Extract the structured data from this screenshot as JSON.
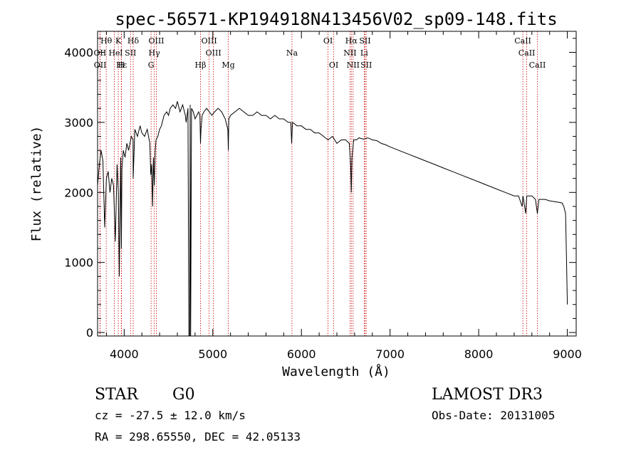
{
  "chart_data": {
    "type": "line",
    "title": "spec-56571-KP194918N413456V02_sp09-148.fits",
    "xlabel": "Wavelength (Å)",
    "ylabel": "Flux (relative)",
    "xlim": [
      3700,
      9100
    ],
    "ylim": [
      -50,
      4300
    ],
    "xticks": [
      4000,
      5000,
      6000,
      7000,
      8000,
      9000
    ],
    "yticks": [
      0,
      1000,
      2000,
      3000,
      4000
    ],
    "series": [
      {
        "name": "flux",
        "x": [
          3700,
          3720,
          3740,
          3760,
          3780,
          3800,
          3820,
          3840,
          3860,
          3880,
          3900,
          3920,
          3935,
          3945,
          3960,
          3968,
          3975,
          3990,
          4010,
          4030,
          4050,
          4080,
          4100,
          4102,
          4120,
          4150,
          4180,
          4200,
          4230,
          4260,
          4290,
          4300,
          4310,
          4320,
          4330,
          4340,
          4350,
          4360,
          4380,
          4400,
          4420,
          4450,
          4480,
          4500,
          4520,
          4550,
          4580,
          4600,
          4630,
          4660,
          4690,
          4700,
          4720,
          4730,
          4740,
          4745,
          4750,
          4760,
          4780,
          4800,
          4820,
          4840,
          4855,
          4861,
          4867,
          4880,
          4900,
          4930,
          4960,
          4990,
          5020,
          5060,
          5100,
          5140,
          5170,
          5175,
          5180,
          5200,
          5250,
          5300,
          5350,
          5400,
          5450,
          5500,
          5550,
          5600,
          5650,
          5700,
          5750,
          5800,
          5850,
          5880,
          5890,
          5896,
          5900,
          5950,
          6000,
          6050,
          6100,
          6150,
          6200,
          6250,
          6300,
          6350,
          6400,
          6450,
          6500,
          6540,
          6555,
          6563,
          6570,
          6590,
          6620,
          6650,
          6700,
          6750,
          6800,
          6850,
          6900,
          6950,
          7000,
          7100,
          7200,
          7300,
          7400,
          7500,
          7600,
          7700,
          7800,
          7900,
          8000,
          8100,
          8200,
          8300,
          8400,
          8450,
          8490,
          8500,
          8530,
          8542,
          8550,
          8600,
          8640,
          8662,
          8680,
          8750,
          8800,
          8850,
          8900,
          8940,
          8960,
          8970,
          8980,
          8990,
          9000
        ],
        "values": [
          2100,
          2400,
          2600,
          2450,
          1500,
          2200,
          2300,
          2000,
          2200,
          2100,
          1300,
          2400,
          2000,
          800,
          2500,
          1200,
          2350,
          2600,
          2500,
          2700,
          2600,
          2800,
          2750,
          2200,
          2900,
          2800,
          2950,
          2850,
          2800,
          2900,
          2700,
          2250,
          2400,
          1800,
          2500,
          2100,
          2600,
          2750,
          2800,
          2900,
          2950,
          3100,
          3150,
          3100,
          3200,
          3250,
          3200,
          3300,
          3150,
          3250,
          3100,
          3000,
          3200,
          -50,
          -50,
          3250,
          -50,
          3200,
          3150,
          3050,
          3100,
          3150,
          3100,
          2700,
          2900,
          3100,
          3150,
          3200,
          3150,
          3100,
          3150,
          3200,
          3150,
          3050,
          2900,
          2600,
          3050,
          3100,
          3150,
          3200,
          3150,
          3100,
          3100,
          3150,
          3100,
          3100,
          3050,
          3100,
          3050,
          3050,
          3000,
          3000,
          2700,
          2900,
          3000,
          2950,
          2950,
          2900,
          2900,
          2850,
          2850,
          2800,
          2750,
          2800,
          2700,
          2750,
          2750,
          2700,
          2400,
          2000,
          2500,
          2750,
          2750,
          2780,
          2760,
          2780,
          2750,
          2740,
          2700,
          2680,
          2650,
          2600,
          2550,
          2500,
          2450,
          2400,
          2350,
          2300,
          2250,
          2200,
          2150,
          2100,
          2050,
          2000,
          1950,
          1950,
          1800,
          1950,
          1700,
          1950,
          1950,
          1950,
          1900,
          1700,
          1900,
          1900,
          1880,
          1870,
          1860,
          1850,
          1800,
          1750,
          1700,
          1100,
          400
        ]
      }
    ],
    "lines": [
      {
        "name": "Hθ",
        "wave": 3798,
        "row": 1
      },
      {
        "name": "K",
        "wave": 3934,
        "row": 1
      },
      {
        "name": "Hδ",
        "wave": 4102,
        "row": 1
      },
      {
        "name": "OIII",
        "wave": 4363,
        "row": 1
      },
      {
        "name": "OIII",
        "wave": 4959,
        "row": 1
      },
      {
        "name": "OI",
        "wave": 6300,
        "row": 1
      },
      {
        "name": "Hα",
        "wave": 6563,
        "row": 1
      },
      {
        "name": "SII",
        "wave": 6717,
        "row": 1
      },
      {
        "name": "CaII",
        "wave": 8498,
        "row": 1
      },
      {
        "name": "OII",
        "wave": 3727,
        "row": 2
      },
      {
        "name": "He",
        "wave": 3889,
        "row": 2
      },
      {
        "name": "I",
        "wave": 3968,
        "row": 2
      },
      {
        "name": "SII",
        "wave": 4072,
        "row": 2
      },
      {
        "name": "Hγ",
        "wave": 4340,
        "row": 2
      },
      {
        "name": "OIII",
        "wave": 5007,
        "row": 2
      },
      {
        "name": "Na",
        "wave": 5893,
        "row": 2
      },
      {
        "name": "NII",
        "wave": 6548,
        "row": 2
      },
      {
        "name": "Li",
        "wave": 6708,
        "row": 2
      },
      {
        "name": "CaII",
        "wave": 8542,
        "row": 2
      },
      {
        "name": "OII",
        "wave": 3729,
        "row": 3
      },
      {
        "name": "Hε",
        "wave": 3970,
        "row": 3
      },
      {
        "name": "H",
        "wave": 3968,
        "row": 3
      },
      {
        "name": "G",
        "wave": 4304,
        "row": 3
      },
      {
        "name": "Hβ",
        "wave": 4861,
        "row": 3
      },
      {
        "name": "Mg",
        "wave": 5175,
        "row": 3
      },
      {
        "name": "OI",
        "wave": 6364,
        "row": 3
      },
      {
        "name": "NII",
        "wave": 6583,
        "row": 3
      },
      {
        "name": "SII",
        "wave": 6731,
        "row": 3
      },
      {
        "name": "CaII",
        "wave": 8662,
        "row": 3
      }
    ],
    "line_color": "#cc0000",
    "series_color": "#000000"
  },
  "info": {
    "class": "STAR",
    "subclass": "G0",
    "cz": "cz = -27.5 ± 12.0 km/s",
    "radec": "RA = 298.65550, DEC =  42.05133",
    "survey": "LAMOST DR3",
    "obsdate": "Obs-Date: 20131005"
  }
}
